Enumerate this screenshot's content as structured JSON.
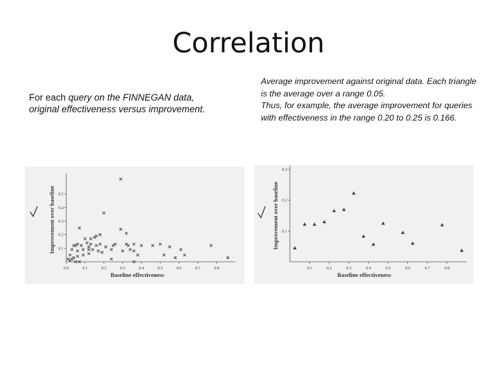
{
  "slide": {
    "title": "Correlation",
    "left": {
      "line1_plain": "For each ",
      "line1_italic": "query on the FINNEGAN data,",
      "line2_italic": "original effectiveness versus improvement."
    },
    "right": {
      "para1": "Average improvement against original   data. Each triangle is the average over a range 0.05.",
      "para2": "Thus, for example, the average improvement for queries with effectiveness in the range 0.20 to 0.25 is 0.166."
    }
  },
  "colors": {
    "marks": "#3a3a3a",
    "plot_background": "#f1f1ef",
    "check": "#444444"
  },
  "chart_data": [
    {
      "type": "scatter",
      "marker": "x",
      "xlabel": "Baseline effectiveness",
      "ylabel": "Improvement over baseline",
      "xlim": [
        0,
        0.9
      ],
      "ylim": [
        0,
        0.62
      ],
      "xticks": [
        "0.0",
        "0.1",
        "0.2",
        "0.3",
        "0.4",
        "0.5",
        "0.6",
        "0.7",
        "0.8"
      ],
      "yticks": [
        "0.1",
        "0.2",
        "0.3",
        "0.4",
        "0.5"
      ],
      "points": [
        [
          0.29,
          0.61
        ],
        [
          0.2,
          0.36
        ],
        [
          0.07,
          0.25
        ],
        [
          0.29,
          0.24
        ],
        [
          0.32,
          0.21
        ],
        [
          0.18,
          0.2
        ],
        [
          0.1,
          0.17
        ],
        [
          0.13,
          0.17
        ],
        [
          0.15,
          0.18
        ],
        [
          0.16,
          0.19
        ],
        [
          0.11,
          0.14
        ],
        [
          0.06,
          0.13
        ],
        [
          0.04,
          0.12
        ],
        [
          0.05,
          0.12
        ],
        [
          0.08,
          0.12
        ],
        [
          0.12,
          0.11
        ],
        [
          0.13,
          0.13
        ],
        [
          0.16,
          0.12
        ],
        [
          0.18,
          0.13
        ],
        [
          0.21,
          0.11
        ],
        [
          0.25,
          0.12
        ],
        [
          0.26,
          0.13
        ],
        [
          0.32,
          0.13
        ],
        [
          0.33,
          0.12
        ],
        [
          0.36,
          0.13
        ],
        [
          0.4,
          0.12
        ],
        [
          0.46,
          0.12
        ],
        [
          0.5,
          0.13
        ],
        [
          0.55,
          0.11
        ],
        [
          0.61,
          0.09
        ],
        [
          0.03,
          0.09
        ],
        [
          0.06,
          0.08
        ],
        [
          0.09,
          0.09
        ],
        [
          0.12,
          0.09
        ],
        [
          0.14,
          0.09
        ],
        [
          0.17,
          0.08
        ],
        [
          0.19,
          0.07
        ],
        [
          0.24,
          0.09
        ],
        [
          0.3,
          0.08
        ],
        [
          0.34,
          0.09
        ],
        [
          0.36,
          0.08
        ],
        [
          0.02,
          0.05
        ],
        [
          0.04,
          0.03
        ],
        [
          0.06,
          0.04
        ],
        [
          0.09,
          0.05
        ],
        [
          0.12,
          0.06
        ],
        [
          0.38,
          0.05
        ],
        [
          0.52,
          0.05
        ],
        [
          0.63,
          0.05
        ],
        [
          0.01,
          0.02
        ],
        [
          0.03,
          0.02
        ],
        [
          0.02,
          0.01
        ],
        [
          0.05,
          0.0
        ],
        [
          0.07,
          0.0
        ],
        [
          0.24,
          0.02
        ],
        [
          0.36,
          0.0
        ],
        [
          0.58,
          0.03
        ],
        [
          0.77,
          0.12
        ],
        [
          0.86,
          0.03
        ]
      ]
    },
    {
      "type": "scatter",
      "marker": "triangle",
      "xlabel": "Baseline effectiveness",
      "ylabel": "Improvement over baseline",
      "xlim": [
        0,
        0.9
      ],
      "ylim": [
        0,
        0.3
      ],
      "xticks": [
        "0.1",
        "0.2",
        "0.3",
        "0.4",
        "0.5",
        "0.6",
        "0.7",
        "0.8"
      ],
      "yticks": [
        "0.1",
        "0.2",
        "0.3"
      ],
      "points": [
        [
          0.025,
          0.045
        ],
        [
          0.075,
          0.122
        ],
        [
          0.125,
          0.122
        ],
        [
          0.175,
          0.13
        ],
        [
          0.225,
          0.166
        ],
        [
          0.275,
          0.17
        ],
        [
          0.325,
          0.223
        ],
        [
          0.375,
          0.083
        ],
        [
          0.425,
          0.057
        ],
        [
          0.475,
          0.125
        ],
        [
          0.575,
          0.095
        ],
        [
          0.625,
          0.06
        ],
        [
          0.775,
          0.12
        ],
        [
          0.875,
          0.037
        ]
      ]
    }
  ]
}
